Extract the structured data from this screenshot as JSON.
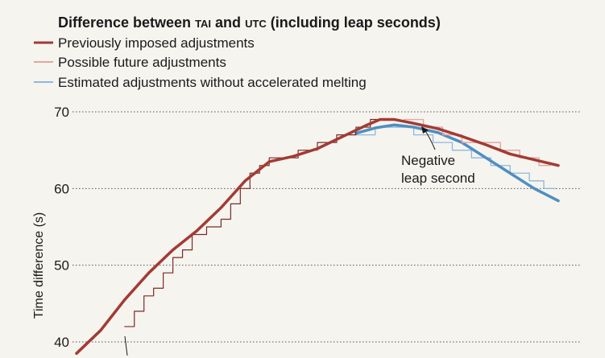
{
  "chart_data": {
    "type": "line",
    "title": "Difference between TAI and UTC (including leap seconds)",
    "title_parts": {
      "before": "Difference between ",
      "tai": "TAI",
      "middle": " and ",
      "utc": "UTC",
      "after": " (including leap seconds)"
    },
    "ylabel": "Time difference (s)",
    "xlabel": "",
    "ylim": [
      38,
      72
    ],
    "yticks": [
      40,
      50,
      60,
      70
    ],
    "ytick_labels": [
      "40",
      "50",
      "60",
      "70"
    ],
    "grid": "horizontal-dotted",
    "legend_position": "top-left",
    "series": [
      {
        "name": "Previously imposed adjustments",
        "color": "#a33a34",
        "smooth": [
          [
            0.0,
            38.5
          ],
          [
            0.05,
            41.5
          ],
          [
            0.1,
            45.5
          ],
          [
            0.15,
            49.0
          ],
          [
            0.2,
            52.0
          ],
          [
            0.25,
            54.5
          ],
          [
            0.3,
            57.5
          ],
          [
            0.35,
            61.0
          ],
          [
            0.4,
            63.5
          ],
          [
            0.45,
            64.2
          ],
          [
            0.5,
            65.2
          ],
          [
            0.55,
            66.7
          ],
          [
            0.6,
            68.2
          ],
          [
            0.63,
            69.0
          ],
          [
            0.66,
            69.0
          ],
          [
            0.7,
            68.5
          ],
          [
            0.75,
            67.8
          ],
          [
            0.8,
            66.8
          ],
          [
            0.85,
            65.7
          ],
          [
            0.9,
            64.5
          ],
          [
            1.0,
            63.0
          ]
        ],
        "steps_x": [
          0.1,
          0.12,
          0.14,
          0.16,
          0.18,
          0.2,
          0.22,
          0.24,
          0.27,
          0.3,
          0.32,
          0.34,
          0.36,
          0.38,
          0.4,
          0.46,
          0.5,
          0.54,
          0.58,
          0.61,
          0.68,
          0.72,
          0.76,
          0.8,
          0.84,
          0.88,
          0.92,
          0.96
        ],
        "steps_y": [
          42,
          44,
          46,
          47,
          49,
          51,
          52,
          54,
          55,
          56,
          58,
          60,
          62,
          63,
          64,
          65,
          66,
          67,
          68,
          69,
          69,
          68,
          67,
          66,
          66,
          65,
          64,
          63
        ]
      },
      {
        "name": "Possible future adjustments",
        "color": "#e3a6a0"
      },
      {
        "name": "Estimated adjustments without accelerated melting",
        "color": "#4d8fc2",
        "smooth": [
          [
            0.58,
            67.2
          ],
          [
            0.62,
            67.9
          ],
          [
            0.66,
            68.3
          ],
          [
            0.7,
            68.0
          ],
          [
            0.75,
            67.3
          ],
          [
            0.8,
            66.0
          ],
          [
            0.85,
            64.0
          ],
          [
            0.9,
            62.0
          ],
          [
            0.95,
            60.0
          ],
          [
            1.0,
            58.4
          ]
        ],
        "steps_x": [
          0.58,
          0.62,
          0.65,
          0.7,
          0.74,
          0.78,
          0.82,
          0.86,
          0.9,
          0.94,
          0.97
        ],
        "steps_y": [
          67,
          68,
          68,
          67,
          66,
          65,
          64,
          63,
          62,
          61,
          60
        ]
      }
    ],
    "annotations": [
      {
        "text": [
          "Negative",
          "leap second"
        ],
        "target_x": 0.63,
        "target_y": 68.5
      }
    ]
  }
}
